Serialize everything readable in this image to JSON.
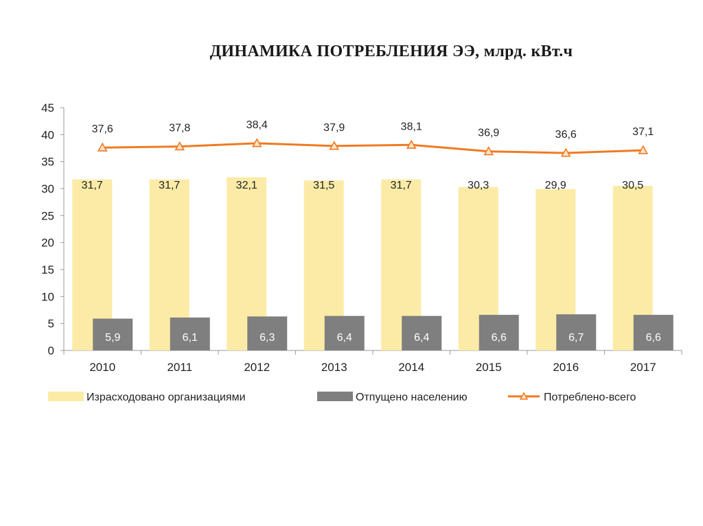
{
  "chart_data": {
    "type": "bar",
    "title": "ДИНАМИКА ПОТРЕБЛЕНИЯ ЭЭ, млрд. кВт.ч",
    "categories": [
      "2010",
      "2011",
      "2012",
      "2013",
      "2014",
      "2015",
      "2016",
      "2017"
    ],
    "ylim": [
      0,
      45
    ],
    "yticks": [
      0,
      5,
      10,
      15,
      20,
      25,
      30,
      35,
      40,
      45
    ],
    "grid": false,
    "legend_position": "bottom",
    "series": [
      {
        "name": "Израсходовано организациями",
        "type": "bar",
        "color": "#FBEBA6",
        "values": [
          31.7,
          31.7,
          32.1,
          31.5,
          31.7,
          30.3,
          29.9,
          30.5
        ],
        "labels": [
          "31,7",
          "31,7",
          "32,1",
          "31,5",
          "31,7",
          "30,3",
          "29,9",
          "30,5"
        ]
      },
      {
        "name": "Отпущено населению",
        "type": "bar",
        "color": "#7F7F7F",
        "values": [
          5.9,
          6.1,
          6.3,
          6.4,
          6.4,
          6.6,
          6.7,
          6.6
        ],
        "labels": [
          "5,9",
          "6,1",
          "6,3",
          "6,4",
          "6,4",
          "6,6",
          "6,7",
          "6,6"
        ]
      },
      {
        "name": "Потреблено-всего",
        "type": "line",
        "color": "#F07A22",
        "marker": "triangle",
        "values": [
          37.6,
          37.8,
          38.4,
          37.9,
          38.1,
          36.9,
          36.6,
          37.1
        ],
        "labels": [
          "37,6",
          "37,8",
          "38,4",
          "37,9",
          "38,1",
          "36,9",
          "36,6",
          "37,1"
        ]
      }
    ]
  }
}
